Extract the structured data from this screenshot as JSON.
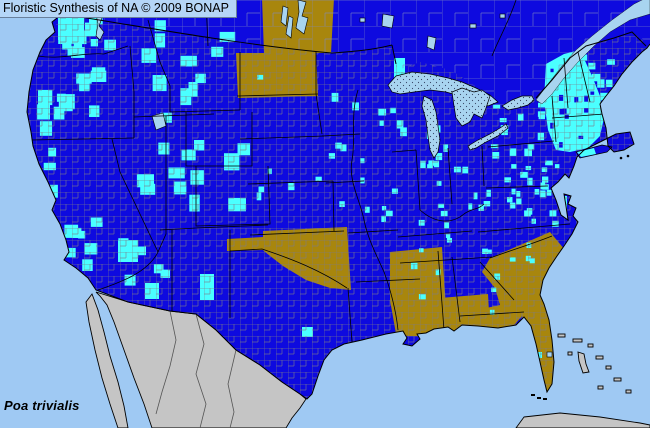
{
  "header": {
    "title": "Floristic Synthesis of NA © 2009 BONAP"
  },
  "footer": {
    "species": "Poa trivialis"
  },
  "colors": {
    "ocean": "#9FC9F3",
    "stateExotic": "#0E0ADF",
    "countyExotic": "#4BFFFF",
    "highlightState": "#A8860D",
    "outsideLand": "#C5C5C5",
    "lake": "#A8D4F0",
    "countyLine": "#7B7B88",
    "canadaLine": "#7F88C0",
    "border": "#000000",
    "titleBg": "#B5D6F7"
  }
}
